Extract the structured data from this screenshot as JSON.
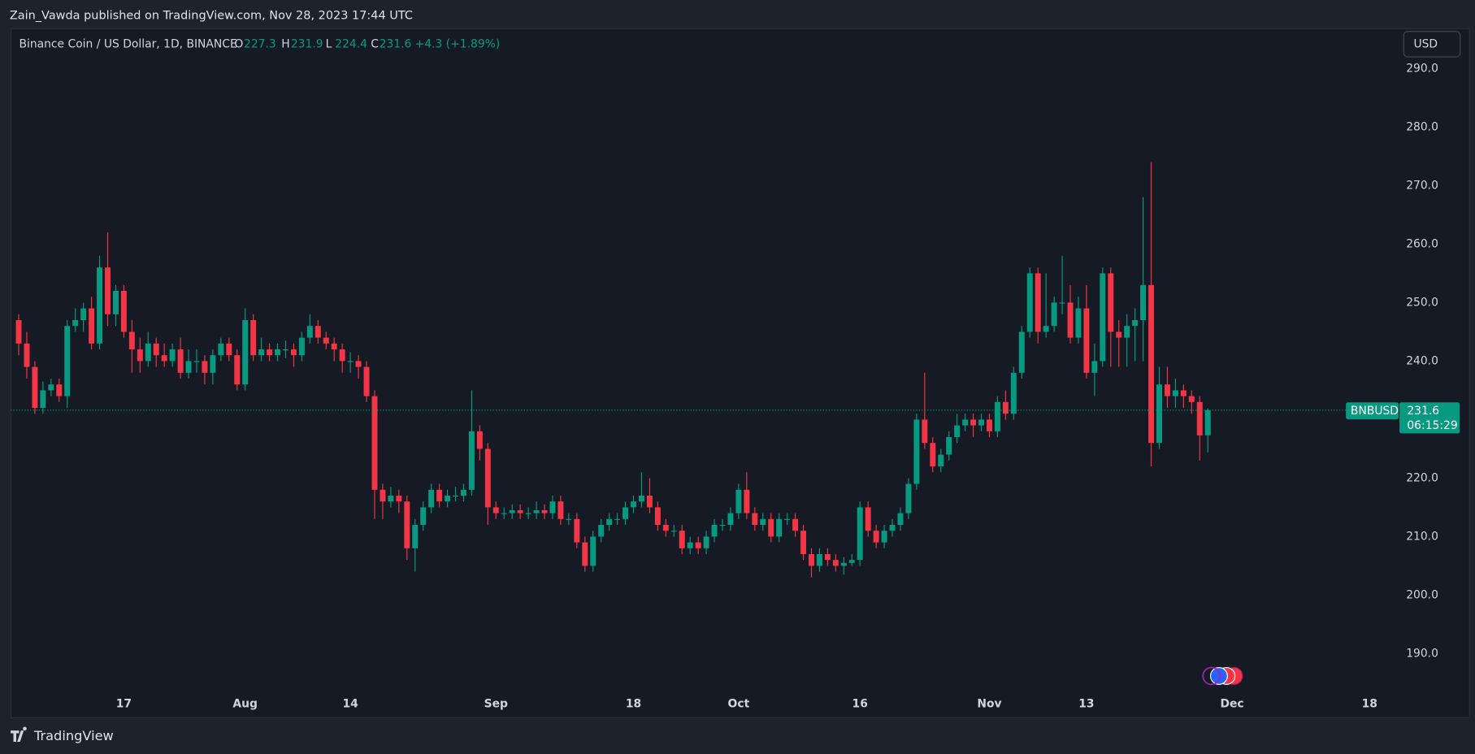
{
  "chart_data": {
    "type": "candlestick",
    "attribution": "Zain_Vawda published on TradingView.com, Nov 28, 2023 17:44 UTC",
    "title": "Binance Coin / US Dollar, 1D, BINANCE",
    "ohlc_letters": [
      "O",
      "H",
      "L",
      "C"
    ],
    "change": "+4.3 (+1.89%)",
    "currency": "USD",
    "symbol": "BNBUSD",
    "countdown": "06:15:29",
    "brand": "TradingView",
    "up_color": "#089981",
    "down_color": "#f23645",
    "grid": false,
    "ylim": [
      183.6,
      296.9
    ],
    "yticks": [
      {
        "value": 190,
        "label": "190.0"
      },
      {
        "value": 200,
        "label": "200.0"
      },
      {
        "value": 210,
        "label": "210.0"
      },
      {
        "value": 220,
        "label": "220.0"
      },
      {
        "value": 230,
        "label": "230.0"
      },
      {
        "value": 240,
        "label": "240.0"
      },
      {
        "value": 250,
        "label": "250.0"
      },
      {
        "value": 260,
        "label": "260.0"
      },
      {
        "value": 270,
        "label": "270.0"
      },
      {
        "value": 280,
        "label": "280.0"
      },
      {
        "value": 290,
        "label": "290.0"
      }
    ],
    "xlim": [
      "2023-07-03",
      "2023-12-21"
    ],
    "xticks": [
      {
        "value": "2023-07-17",
        "label": "17"
      },
      {
        "value": "2023-08-01",
        "label": "Aug"
      },
      {
        "value": "2023-08-14",
        "label": "14"
      },
      {
        "value": "2023-09-01",
        "label": "Sep"
      },
      {
        "value": "2023-09-18",
        "label": "18"
      },
      {
        "value": "2023-10-01",
        "label": "Oct"
      },
      {
        "value": "2023-10-16",
        "label": "16"
      },
      {
        "value": "2023-11-01",
        "label": "Nov"
      },
      {
        "value": "2023-11-13",
        "label": "13"
      },
      {
        "value": "2023-12-01",
        "label": "Dec"
      },
      {
        "value": "2023-12-18",
        "label": "18"
      }
    ],
    "x": [
      "2023-07-04",
      "2023-07-05",
      "2023-07-06",
      "2023-07-07",
      "2023-07-08",
      "2023-07-09",
      "2023-07-10",
      "2023-07-11",
      "2023-07-12",
      "2023-07-13",
      "2023-07-14",
      "2023-07-15",
      "2023-07-16",
      "2023-07-17",
      "2023-07-18",
      "2023-07-19",
      "2023-07-20",
      "2023-07-21",
      "2023-07-22",
      "2023-07-23",
      "2023-07-24",
      "2023-07-25",
      "2023-07-26",
      "2023-07-27",
      "2023-07-28",
      "2023-07-29",
      "2023-07-30",
      "2023-07-31",
      "2023-08-01",
      "2023-08-02",
      "2023-08-03",
      "2023-08-04",
      "2023-08-05",
      "2023-08-06",
      "2023-08-07",
      "2023-08-08",
      "2023-08-09",
      "2023-08-10",
      "2023-08-11",
      "2023-08-12",
      "2023-08-13",
      "2023-08-14",
      "2023-08-15",
      "2023-08-16",
      "2023-08-17",
      "2023-08-18",
      "2023-08-19",
      "2023-08-20",
      "2023-08-21",
      "2023-08-22",
      "2023-08-23",
      "2023-08-24",
      "2023-08-25",
      "2023-08-26",
      "2023-08-27",
      "2023-08-28",
      "2023-08-29",
      "2023-08-30",
      "2023-08-31",
      "2023-09-01",
      "2023-09-02",
      "2023-09-03",
      "2023-09-04",
      "2023-09-05",
      "2023-09-06",
      "2023-09-07",
      "2023-09-08",
      "2023-09-09",
      "2023-09-10",
      "2023-09-11",
      "2023-09-12",
      "2023-09-13",
      "2023-09-14",
      "2023-09-15",
      "2023-09-16",
      "2023-09-17",
      "2023-09-18",
      "2023-09-19",
      "2023-09-20",
      "2023-09-21",
      "2023-09-22",
      "2023-09-23",
      "2023-09-24",
      "2023-09-25",
      "2023-09-26",
      "2023-09-27",
      "2023-09-28",
      "2023-09-29",
      "2023-09-30",
      "2023-10-01",
      "2023-10-02",
      "2023-10-03",
      "2023-10-04",
      "2023-10-05",
      "2023-10-06",
      "2023-10-07",
      "2023-10-08",
      "2023-10-09",
      "2023-10-10",
      "2023-10-11",
      "2023-10-12",
      "2023-10-13",
      "2023-10-14",
      "2023-10-15",
      "2023-10-16",
      "2023-10-17",
      "2023-10-18",
      "2023-10-19",
      "2023-10-20",
      "2023-10-21",
      "2023-10-22",
      "2023-10-23",
      "2023-10-24",
      "2023-10-25",
      "2023-10-26",
      "2023-10-27",
      "2023-10-28",
      "2023-10-29",
      "2023-10-30",
      "2023-10-31",
      "2023-11-01",
      "2023-11-02",
      "2023-11-03",
      "2023-11-04",
      "2023-11-05",
      "2023-11-06",
      "2023-11-07",
      "2023-11-08",
      "2023-11-09",
      "2023-11-10",
      "2023-11-11",
      "2023-11-12",
      "2023-11-13",
      "2023-11-14",
      "2023-11-15",
      "2023-11-16",
      "2023-11-17",
      "2023-11-18",
      "2023-11-19",
      "2023-11-20",
      "2023-11-21",
      "2023-11-22",
      "2023-11-23",
      "2023-11-24",
      "2023-11-25",
      "2023-11-26",
      "2023-11-27",
      "2023-11-28"
    ],
    "open": [
      247,
      243,
      239,
      232,
      235,
      236,
      234,
      246,
      247,
      249,
      243,
      256,
      248,
      252,
      245,
      242,
      240,
      243,
      241,
      240,
      242,
      238,
      240,
      240,
      238,
      241,
      243,
      241,
      236,
      247,
      241,
      242,
      241,
      242,
      242,
      241,
      244,
      246,
      244,
      243,
      242,
      240,
      240,
      239,
      234,
      218,
      216,
      217,
      216,
      208,
      212,
      215,
      218,
      216,
      217,
      217,
      218,
      228,
      225,
      215,
      214,
      214,
      214.5,
      214,
      214,
      214.5,
      214,
      216,
      213,
      213,
      209,
      205,
      210,
      212,
      213,
      213,
      215,
      216,
      217,
      215,
      212,
      211,
      211,
      208,
      209,
      208,
      210,
      212,
      212,
      214,
      218,
      214,
      212,
      213,
      210,
      213,
      213,
      211,
      207,
      205,
      207,
      206,
      205,
      205.5,
      206,
      215,
      211,
      209,
      211,
      212,
      214,
      219,
      230,
      226,
      222,
      224,
      227,
      229,
      230,
      229,
      230,
      228,
      233,
      231,
      238,
      245,
      255,
      245,
      246,
      250,
      250,
      244,
      249,
      238,
      240,
      255,
      245,
      244,
      246,
      247,
      253,
      226,
      236,
      234,
      235,
      234,
      233,
      227.3
    ],
    "high": [
      248,
      245,
      240,
      236.5,
      237,
      237,
      247,
      249,
      250,
      251,
      258,
      262,
      253,
      253,
      247,
      244,
      245,
      244,
      243,
      243,
      244,
      242,
      242,
      241,
      242,
      244,
      244,
      242,
      249,
      248,
      244,
      243,
      243,
      243.5,
      243,
      245,
      248,
      247,
      245,
      244,
      243,
      241.5,
      241,
      240,
      235,
      219,
      218.5,
      218,
      217,
      213,
      216,
      219,
      219,
      218,
      218.5,
      219,
      235,
      229,
      226,
      216,
      215,
      215.5,
      215.5,
      215,
      216,
      215.5,
      217,
      217,
      214,
      214,
      210,
      211,
      213,
      214,
      214,
      216,
      217,
      221,
      220,
      216,
      213,
      212,
      212,
      210,
      210,
      211,
      213,
      213,
      215,
      219,
      221,
      215,
      214,
      214,
      214,
      214,
      214,
      212,
      208,
      208,
      208,
      207,
      206.5,
      207,
      216,
      216,
      212,
      212,
      213,
      215,
      220,
      231,
      238,
      227,
      225,
      228,
      231,
      231,
      231,
      231,
      231,
      234,
      235,
      239,
      246,
      256,
      256,
      255,
      251,
      258,
      253,
      251,
      253,
      243,
      256,
      256,
      247,
      248,
      249,
      268,
      274,
      239,
      239,
      237,
      236,
      235,
      234,
      231.9
    ],
    "low": [
      241,
      237,
      231,
      231,
      234,
      233,
      232,
      245,
      245,
      242,
      242,
      246,
      246,
      244,
      238,
      238,
      239,
      239,
      239,
      239,
      237,
      237,
      238,
      236,
      236,
      240,
      240,
      235,
      235,
      240,
      240,
      240,
      240,
      240.5,
      239,
      240,
      243,
      243,
      242,
      240,
      238,
      238,
      237,
      233,
      213,
      213,
      215,
      214,
      206,
      204,
      211,
      214,
      215,
      215,
      216,
      216,
      217,
      223,
      212,
      213,
      213,
      213,
      213,
      213,
      213,
      213,
      213,
      212,
      212,
      208,
      204,
      204,
      209,
      211,
      212,
      212,
      214,
      215,
      214,
      211,
      210,
      210,
      207,
      207,
      207,
      207,
      209,
      211,
      211,
      213,
      213,
      211,
      211,
      209,
      209,
      212,
      210,
      206,
      203,
      204,
      205,
      204,
      203.5,
      205,
      205,
      210,
      208,
      208,
      210,
      211,
      213,
      218,
      225,
      221,
      221,
      223,
      226,
      228,
      227,
      228,
      227,
      227,
      230,
      230,
      237,
      244,
      243,
      244,
      245,
      248,
      243,
      243,
      237,
      234,
      239,
      239,
      239,
      239,
      240,
      240,
      222,
      225,
      232,
      232,
      232,
      231,
      223,
      224.4
    ],
    "close": [
      243,
      239,
      232,
      235,
      236,
      234,
      246,
      247,
      249,
      243,
      256,
      248,
      252,
      245,
      242,
      240,
      243,
      241,
      240,
      242,
      238,
      240,
      240,
      238,
      241,
      243,
      241,
      236,
      247,
      241,
      242,
      241,
      242,
      242,
      241,
      244,
      246,
      244,
      243,
      242,
      240,
      240,
      239,
      234,
      218,
      216,
      217,
      216,
      208,
      212,
      215,
      218,
      216,
      217,
      217,
      218,
      228,
      225,
      215,
      214,
      214,
      214.5,
      214,
      214,
      214.5,
      214,
      216,
      213,
      213,
      209,
      205,
      210,
      212,
      213,
      213,
      215,
      216,
      217,
      215,
      212,
      211,
      211,
      208,
      209,
      208,
      210,
      212,
      212,
      214,
      218,
      214,
      212,
      213,
      210,
      213,
      213,
      211,
      207,
      205,
      207,
      206,
      205,
      205.5,
      206,
      215,
      211,
      209,
      211,
      212,
      214,
      219,
      230,
      226,
      222,
      224,
      227,
      229,
      230,
      229,
      230,
      228,
      233,
      231,
      238,
      245,
      255,
      245,
      246,
      250,
      250,
      244,
      249,
      238,
      240,
      255,
      245,
      244,
      246,
      247,
      253,
      226,
      236,
      234,
      235,
      234,
      233,
      227.3,
      231.6
    ]
  }
}
